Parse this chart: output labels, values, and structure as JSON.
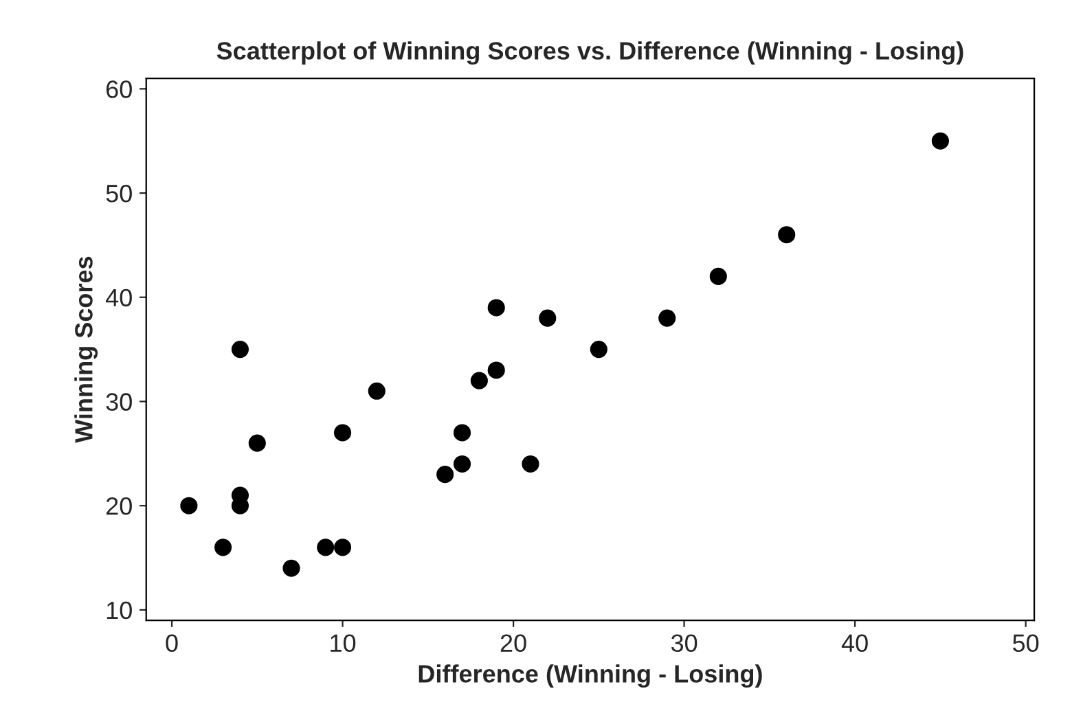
{
  "chart_data": {
    "type": "scatter",
    "title": "Scatterplot of Winning Scores vs. Difference (Winning - Losing)",
    "xlabel": "Difference (Winning - Losing)",
    "ylabel": "Winning Scores",
    "x": [
      1,
      3,
      4,
      4,
      4,
      5,
      7,
      9,
      10,
      10,
      12,
      16,
      17,
      17,
      18,
      19,
      19,
      21,
      22,
      25,
      29,
      32,
      36,
      45
    ],
    "values": [
      20,
      16,
      35,
      21,
      20,
      26,
      14,
      16,
      16,
      27,
      31,
      23,
      27,
      24,
      32,
      39,
      33,
      24,
      38,
      35,
      38,
      42,
      46,
      55
    ],
    "color": "#000000",
    "marker": "circle",
    "xlim": [
      -1.5,
      50.5
    ],
    "xticks": [
      0,
      10,
      20,
      30,
      40,
      50
    ],
    "ylim": [
      9,
      61
    ],
    "yticks": [
      10,
      20,
      30,
      40,
      50,
      60
    ],
    "grid": false
  }
}
